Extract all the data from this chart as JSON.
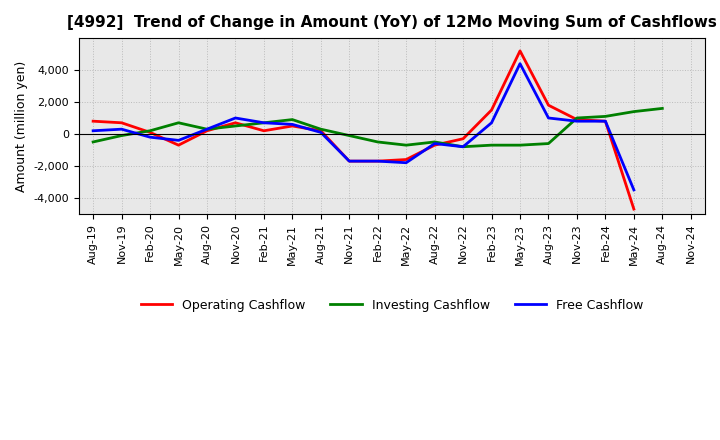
{
  "title": "[4992]  Trend of Change in Amount (YoY) of 12Mo Moving Sum of Cashflows",
  "ylabel": "Amount (million yen)",
  "xlabels": [
    "Aug-19",
    "Nov-19",
    "Feb-20",
    "May-20",
    "Aug-20",
    "Nov-20",
    "Feb-21",
    "May-21",
    "Aug-21",
    "Nov-21",
    "Feb-22",
    "May-22",
    "Aug-22",
    "Nov-22",
    "Feb-23",
    "May-23",
    "Aug-23",
    "Nov-23",
    "Feb-24",
    "May-24",
    "Aug-24",
    "Nov-24"
  ],
  "operating": [
    800,
    700,
    100,
    -700,
    200,
    700,
    200,
    500,
    200,
    -1700,
    -1700,
    -1600,
    -700,
    -300,
    1500,
    5200,
    1800,
    900,
    800,
    -4700,
    null,
    null
  ],
  "investing": [
    -500,
    -100,
    200,
    700,
    300,
    500,
    700,
    900,
    300,
    -100,
    -500,
    -700,
    -500,
    -800,
    -700,
    -700,
    -600,
    1000,
    1100,
    1400,
    1600,
    null
  ],
  "free": [
    200,
    300,
    -200,
    -400,
    300,
    1000,
    700,
    600,
    100,
    -1700,
    -1700,
    -1800,
    -600,
    -800,
    700,
    4400,
    1000,
    800,
    800,
    -3500,
    null,
    null
  ],
  "operating_color": "#ff0000",
  "investing_color": "#008000",
  "free_color": "#0000ff",
  "ylim": [
    -5000,
    6000
  ],
  "yticks": [
    -4000,
    -2000,
    0,
    2000,
    4000
  ],
  "plot_bg_color": "#e8e8e8",
  "fig_bg_color": "#ffffff",
  "grid_color": "#bbbbbb",
  "line_width": 2.0,
  "title_fontsize": 11,
  "ylabel_fontsize": 9,
  "tick_fontsize": 8
}
